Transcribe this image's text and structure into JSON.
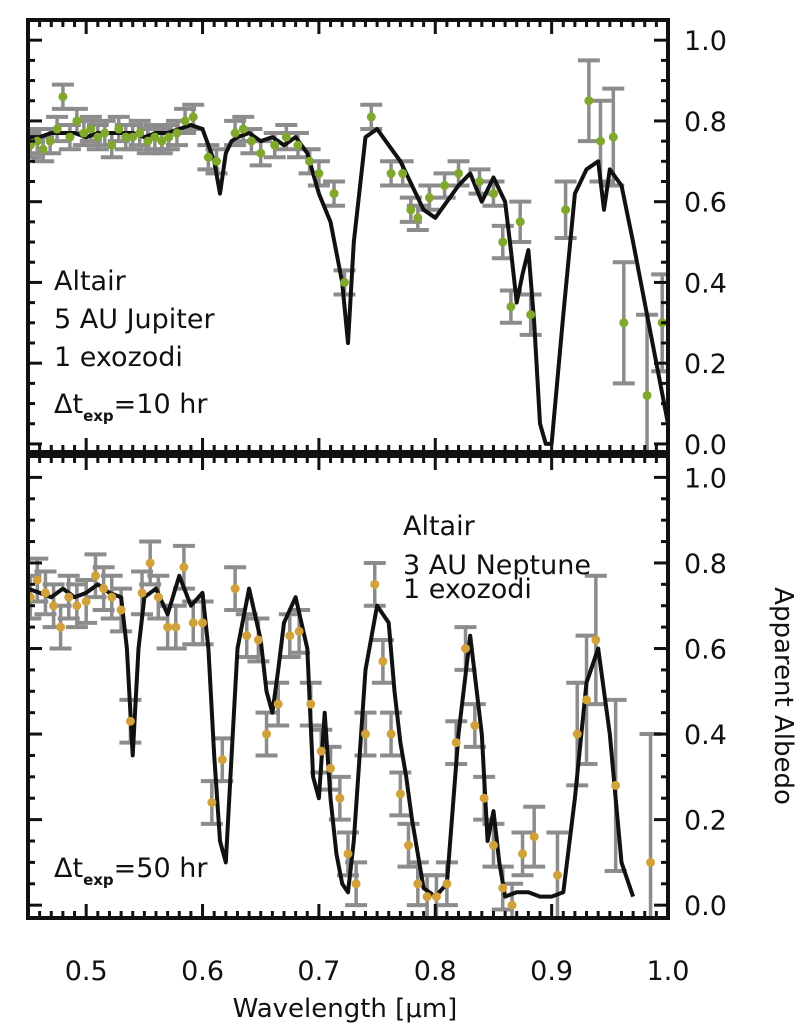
{
  "chart_data": [
    {
      "type": "line",
      "panel": "top",
      "xlabel": "Wavelength [μm]",
      "ylabel": "Apparent Albedo",
      "xlim": [
        0.45,
        1.0
      ],
      "ylim": [
        -0.02,
        1.05
      ],
      "xticks": [
        "0.5",
        "0.6",
        "0.7",
        "0.8",
        "0.9",
        "1.0"
      ],
      "yticks": [
        "0.0",
        "0.2",
        "0.4",
        "0.6",
        "0.8",
        "1.0"
      ],
      "annotations": [
        "Altair",
        "5 AU Jupiter",
        "1 exozodi",
        "Δt",
        "exp",
        "=10 hr"
      ],
      "model_color": "#111111",
      "point_color": "#7fa82c",
      "errorbar_color": "#8c8c8c",
      "model": {
        "x": [
          0.45,
          0.46,
          0.47,
          0.48,
          0.49,
          0.5,
          0.51,
          0.52,
          0.53,
          0.54,
          0.55,
          0.56,
          0.57,
          0.58,
          0.59,
          0.6,
          0.61,
          0.615,
          0.62,
          0.625,
          0.63,
          0.64,
          0.65,
          0.66,
          0.67,
          0.68,
          0.69,
          0.7,
          0.71,
          0.72,
          0.725,
          0.73,
          0.74,
          0.75,
          0.76,
          0.77,
          0.78,
          0.79,
          0.8,
          0.81,
          0.82,
          0.83,
          0.84,
          0.85,
          0.86,
          0.865,
          0.87,
          0.875,
          0.88,
          0.885,
          0.89,
          0.895,
          0.9,
          0.91,
          0.92,
          0.93,
          0.94,
          0.945,
          0.95,
          0.96,
          0.97,
          0.98,
          0.99,
          1.0
        ],
        "y": [
          0.76,
          0.76,
          0.77,
          0.77,
          0.77,
          0.76,
          0.77,
          0.77,
          0.77,
          0.77,
          0.76,
          0.77,
          0.77,
          0.78,
          0.79,
          0.78,
          0.7,
          0.62,
          0.72,
          0.75,
          0.76,
          0.77,
          0.75,
          0.76,
          0.74,
          0.76,
          0.72,
          0.62,
          0.55,
          0.4,
          0.25,
          0.5,
          0.76,
          0.78,
          0.74,
          0.7,
          0.64,
          0.58,
          0.56,
          0.6,
          0.64,
          0.67,
          0.6,
          0.66,
          0.6,
          0.48,
          0.35,
          0.42,
          0.48,
          0.3,
          0.05,
          0.0,
          0.0,
          0.32,
          0.62,
          0.68,
          0.7,
          0.58,
          0.68,
          0.64,
          0.5,
          0.35,
          0.2,
          0.05
        ]
      },
      "points": [
        {
          "x": 0.452,
          "y": 0.74,
          "e": 0.03
        },
        {
          "x": 0.458,
          "y": 0.75,
          "e": 0.03
        },
        {
          "x": 0.463,
          "y": 0.73,
          "e": 0.03
        },
        {
          "x": 0.469,
          "y": 0.75,
          "e": 0.03
        },
        {
          "x": 0.475,
          "y": 0.78,
          "e": 0.03
        },
        {
          "x": 0.48,
          "y": 0.86,
          "e": 0.03
        },
        {
          "x": 0.486,
          "y": 0.76,
          "e": 0.03
        },
        {
          "x": 0.492,
          "y": 0.8,
          "e": 0.03
        },
        {
          "x": 0.498,
          "y": 0.77,
          "e": 0.03
        },
        {
          "x": 0.504,
          "y": 0.78,
          "e": 0.03
        },
        {
          "x": 0.51,
          "y": 0.76,
          "e": 0.03
        },
        {
          "x": 0.516,
          "y": 0.77,
          "e": 0.03
        },
        {
          "x": 0.522,
          "y": 0.74,
          "e": 0.03
        },
        {
          "x": 0.528,
          "y": 0.78,
          "e": 0.03
        },
        {
          "x": 0.534,
          "y": 0.76,
          "e": 0.03
        },
        {
          "x": 0.54,
          "y": 0.76,
          "e": 0.03
        },
        {
          "x": 0.546,
          "y": 0.77,
          "e": 0.03
        },
        {
          "x": 0.553,
          "y": 0.75,
          "e": 0.03
        },
        {
          "x": 0.559,
          "y": 0.76,
          "e": 0.03
        },
        {
          "x": 0.565,
          "y": 0.75,
          "e": 0.03
        },
        {
          "x": 0.571,
          "y": 0.76,
          "e": 0.03
        },
        {
          "x": 0.578,
          "y": 0.77,
          "e": 0.03
        },
        {
          "x": 0.585,
          "y": 0.8,
          "e": 0.03
        },
        {
          "x": 0.592,
          "y": 0.81,
          "e": 0.03
        },
        {
          "x": 0.605,
          "y": 0.71,
          "e": 0.03
        },
        {
          "x": 0.612,
          "y": 0.7,
          "e": 0.03
        },
        {
          "x": 0.628,
          "y": 0.77,
          "e": 0.03
        },
        {
          "x": 0.635,
          "y": 0.78,
          "e": 0.03
        },
        {
          "x": 0.642,
          "y": 0.75,
          "e": 0.03
        },
        {
          "x": 0.65,
          "y": 0.72,
          "e": 0.03
        },
        {
          "x": 0.662,
          "y": 0.74,
          "e": 0.03
        },
        {
          "x": 0.672,
          "y": 0.76,
          "e": 0.03
        },
        {
          "x": 0.682,
          "y": 0.74,
          "e": 0.03
        },
        {
          "x": 0.692,
          "y": 0.7,
          "e": 0.03
        },
        {
          "x": 0.7,
          "y": 0.67,
          "e": 0.03
        },
        {
          "x": 0.713,
          "y": 0.62,
          "e": 0.03
        },
        {
          "x": 0.722,
          "y": 0.4,
          "e": 0.03
        },
        {
          "x": 0.745,
          "y": 0.81,
          "e": 0.03
        },
        {
          "x": 0.762,
          "y": 0.67,
          "e": 0.03
        },
        {
          "x": 0.772,
          "y": 0.67,
          "e": 0.03
        },
        {
          "x": 0.779,
          "y": 0.58,
          "e": 0.03
        },
        {
          "x": 0.785,
          "y": 0.56,
          "e": 0.03
        },
        {
          "x": 0.795,
          "y": 0.61,
          "e": 0.03
        },
        {
          "x": 0.808,
          "y": 0.64,
          "e": 0.03
        },
        {
          "x": 0.82,
          "y": 0.67,
          "e": 0.03
        },
        {
          "x": 0.838,
          "y": 0.65,
          "e": 0.03
        },
        {
          "x": 0.85,
          "y": 0.62,
          "e": 0.03
        },
        {
          "x": 0.858,
          "y": 0.5,
          "e": 0.04
        },
        {
          "x": 0.865,
          "y": 0.34,
          "e": 0.04
        },
        {
          "x": 0.873,
          "y": 0.55,
          "e": 0.05
        },
        {
          "x": 0.882,
          "y": 0.32,
          "e": 0.05
        },
        {
          "x": 0.912,
          "y": 0.58,
          "e": 0.07
        },
        {
          "x": 0.932,
          "y": 0.85,
          "e": 0.1
        },
        {
          "x": 0.942,
          "y": 0.75,
          "e": 0.1
        },
        {
          "x": 0.953,
          "y": 0.76,
          "e": 0.12
        },
        {
          "x": 0.962,
          "y": 0.3,
          "e": 0.15
        },
        {
          "x": 0.982,
          "y": 0.12,
          "e": 0.2
        },
        {
          "x": 0.995,
          "y": 0.3,
          "e": 0.12
        }
      ]
    },
    {
      "type": "line",
      "panel": "bottom",
      "xlabel": "Wavelength [μm]",
      "ylabel": "Apparent Albedo",
      "xlim": [
        0.45,
        1.0
      ],
      "ylim": [
        -0.03,
        1.05
      ],
      "xticks": [
        "0.5",
        "0.6",
        "0.7",
        "0.8",
        "0.9",
        "1.0"
      ],
      "yticks": [
        "0.0",
        "0.2",
        "0.4",
        "0.6",
        "0.8",
        "1.0"
      ],
      "annotations": [
        "Altair",
        "3 AU Neptune",
        "1 exozodi",
        "Δt",
        "exp",
        "=50 hr"
      ],
      "model_color": "#111111",
      "point_color": "#d1a23a",
      "errorbar_color": "#8c8c8c",
      "model": {
        "x": [
          0.45,
          0.46,
          0.47,
          0.48,
          0.49,
          0.5,
          0.51,
          0.52,
          0.53,
          0.535,
          0.54,
          0.545,
          0.55,
          0.56,
          0.57,
          0.58,
          0.59,
          0.6,
          0.605,
          0.61,
          0.615,
          0.62,
          0.625,
          0.63,
          0.64,
          0.65,
          0.655,
          0.66,
          0.665,
          0.67,
          0.68,
          0.69,
          0.695,
          0.7,
          0.705,
          0.71,
          0.715,
          0.72,
          0.725,
          0.73,
          0.74,
          0.75,
          0.76,
          0.765,
          0.77,
          0.775,
          0.78,
          0.79,
          0.8,
          0.81,
          0.82,
          0.83,
          0.84,
          0.845,
          0.85,
          0.855,
          0.86,
          0.87,
          0.88,
          0.89,
          0.9,
          0.91,
          0.92,
          0.93,
          0.94,
          0.95,
          0.96,
          0.97
        ],
        "y": [
          0.74,
          0.73,
          0.72,
          0.74,
          0.72,
          0.73,
          0.75,
          0.73,
          0.72,
          0.6,
          0.35,
          0.6,
          0.72,
          0.74,
          0.68,
          0.77,
          0.7,
          0.73,
          0.6,
          0.35,
          0.15,
          0.1,
          0.35,
          0.6,
          0.74,
          0.62,
          0.5,
          0.45,
          0.55,
          0.66,
          0.72,
          0.6,
          0.3,
          0.25,
          0.45,
          0.25,
          0.12,
          0.05,
          0.03,
          0.15,
          0.55,
          0.7,
          0.66,
          0.5,
          0.38,
          0.3,
          0.2,
          0.04,
          0.02,
          0.05,
          0.4,
          0.63,
          0.4,
          0.15,
          0.22,
          0.1,
          0.02,
          0.03,
          0.03,
          0.02,
          0.02,
          0.03,
          0.25,
          0.52,
          0.6,
          0.4,
          0.1,
          0.02
        ]
      },
      "points": [
        {
          "x": 0.452,
          "y": 0.72,
          "e": 0.05
        },
        {
          "x": 0.458,
          "y": 0.76,
          "e": 0.05
        },
        {
          "x": 0.465,
          "y": 0.73,
          "e": 0.05
        },
        {
          "x": 0.472,
          "y": 0.7,
          "e": 0.05
        },
        {
          "x": 0.478,
          "y": 0.65,
          "e": 0.05
        },
        {
          "x": 0.485,
          "y": 0.72,
          "e": 0.05
        },
        {
          "x": 0.492,
          "y": 0.7,
          "e": 0.05
        },
        {
          "x": 0.5,
          "y": 0.71,
          "e": 0.05
        },
        {
          "x": 0.508,
          "y": 0.77,
          "e": 0.05
        },
        {
          "x": 0.515,
          "y": 0.74,
          "e": 0.05
        },
        {
          "x": 0.522,
          "y": 0.72,
          "e": 0.05
        },
        {
          "x": 0.53,
          "y": 0.69,
          "e": 0.05
        },
        {
          "x": 0.538,
          "y": 0.43,
          "e": 0.05
        },
        {
          "x": 0.548,
          "y": 0.73,
          "e": 0.05
        },
        {
          "x": 0.555,
          "y": 0.8,
          "e": 0.05
        },
        {
          "x": 0.562,
          "y": 0.72,
          "e": 0.05
        },
        {
          "x": 0.57,
          "y": 0.65,
          "e": 0.05
        },
        {
          "x": 0.577,
          "y": 0.65,
          "e": 0.05
        },
        {
          "x": 0.584,
          "y": 0.79,
          "e": 0.05
        },
        {
          "x": 0.592,
          "y": 0.66,
          "e": 0.05
        },
        {
          "x": 0.6,
          "y": 0.66,
          "e": 0.05
        },
        {
          "x": 0.608,
          "y": 0.24,
          "e": 0.05
        },
        {
          "x": 0.617,
          "y": 0.34,
          "e": 0.05
        },
        {
          "x": 0.628,
          "y": 0.74,
          "e": 0.05
        },
        {
          "x": 0.638,
          "y": 0.63,
          "e": 0.05
        },
        {
          "x": 0.648,
          "y": 0.62,
          "e": 0.05
        },
        {
          "x": 0.655,
          "y": 0.4,
          "e": 0.05
        },
        {
          "x": 0.665,
          "y": 0.47,
          "e": 0.05
        },
        {
          "x": 0.675,
          "y": 0.63,
          "e": 0.05
        },
        {
          "x": 0.683,
          "y": 0.64,
          "e": 0.05
        },
        {
          "x": 0.693,
          "y": 0.47,
          "e": 0.05
        },
        {
          "x": 0.702,
          "y": 0.36,
          "e": 0.05
        },
        {
          "x": 0.71,
          "y": 0.32,
          "e": 0.05
        },
        {
          "x": 0.718,
          "y": 0.25,
          "e": 0.05
        },
        {
          "x": 0.725,
          "y": 0.12,
          "e": 0.05
        },
        {
          "x": 0.732,
          "y": 0.05,
          "e": 0.05
        },
        {
          "x": 0.74,
          "y": 0.4,
          "e": 0.05
        },
        {
          "x": 0.748,
          "y": 0.75,
          "e": 0.05
        },
        {
          "x": 0.755,
          "y": 0.57,
          "e": 0.05
        },
        {
          "x": 0.762,
          "y": 0.4,
          "e": 0.05
        },
        {
          "x": 0.77,
          "y": 0.26,
          "e": 0.05
        },
        {
          "x": 0.777,
          "y": 0.14,
          "e": 0.05
        },
        {
          "x": 0.785,
          "y": 0.05,
          "e": 0.05
        },
        {
          "x": 0.793,
          "y": 0.02,
          "e": 0.05
        },
        {
          "x": 0.801,
          "y": 0.02,
          "e": 0.05
        },
        {
          "x": 0.81,
          "y": 0.05,
          "e": 0.05
        },
        {
          "x": 0.818,
          "y": 0.38,
          "e": 0.05
        },
        {
          "x": 0.826,
          "y": 0.6,
          "e": 0.05
        },
        {
          "x": 0.834,
          "y": 0.42,
          "e": 0.05
        },
        {
          "x": 0.842,
          "y": 0.25,
          "e": 0.05
        },
        {
          "x": 0.85,
          "y": 0.14,
          "e": 0.05
        },
        {
          "x": 0.858,
          "y": 0.04,
          "e": 0.05
        },
        {
          "x": 0.866,
          "y": 0.0,
          "e": 0.05
        },
        {
          "x": 0.875,
          "y": 0.12,
          "e": 0.05
        },
        {
          "x": 0.885,
          "y": 0.16,
          "e": 0.07
        },
        {
          "x": 0.905,
          "y": 0.07,
          "e": 0.1
        },
        {
          "x": 0.922,
          "y": 0.4,
          "e": 0.12
        },
        {
          "x": 0.93,
          "y": 0.48,
          "e": 0.15
        },
        {
          "x": 0.938,
          "y": 0.62,
          "e": 0.15
        },
        {
          "x": 0.955,
          "y": 0.28,
          "e": 0.2
        },
        {
          "x": 0.985,
          "y": 0.1,
          "e": 0.3
        }
      ]
    }
  ]
}
